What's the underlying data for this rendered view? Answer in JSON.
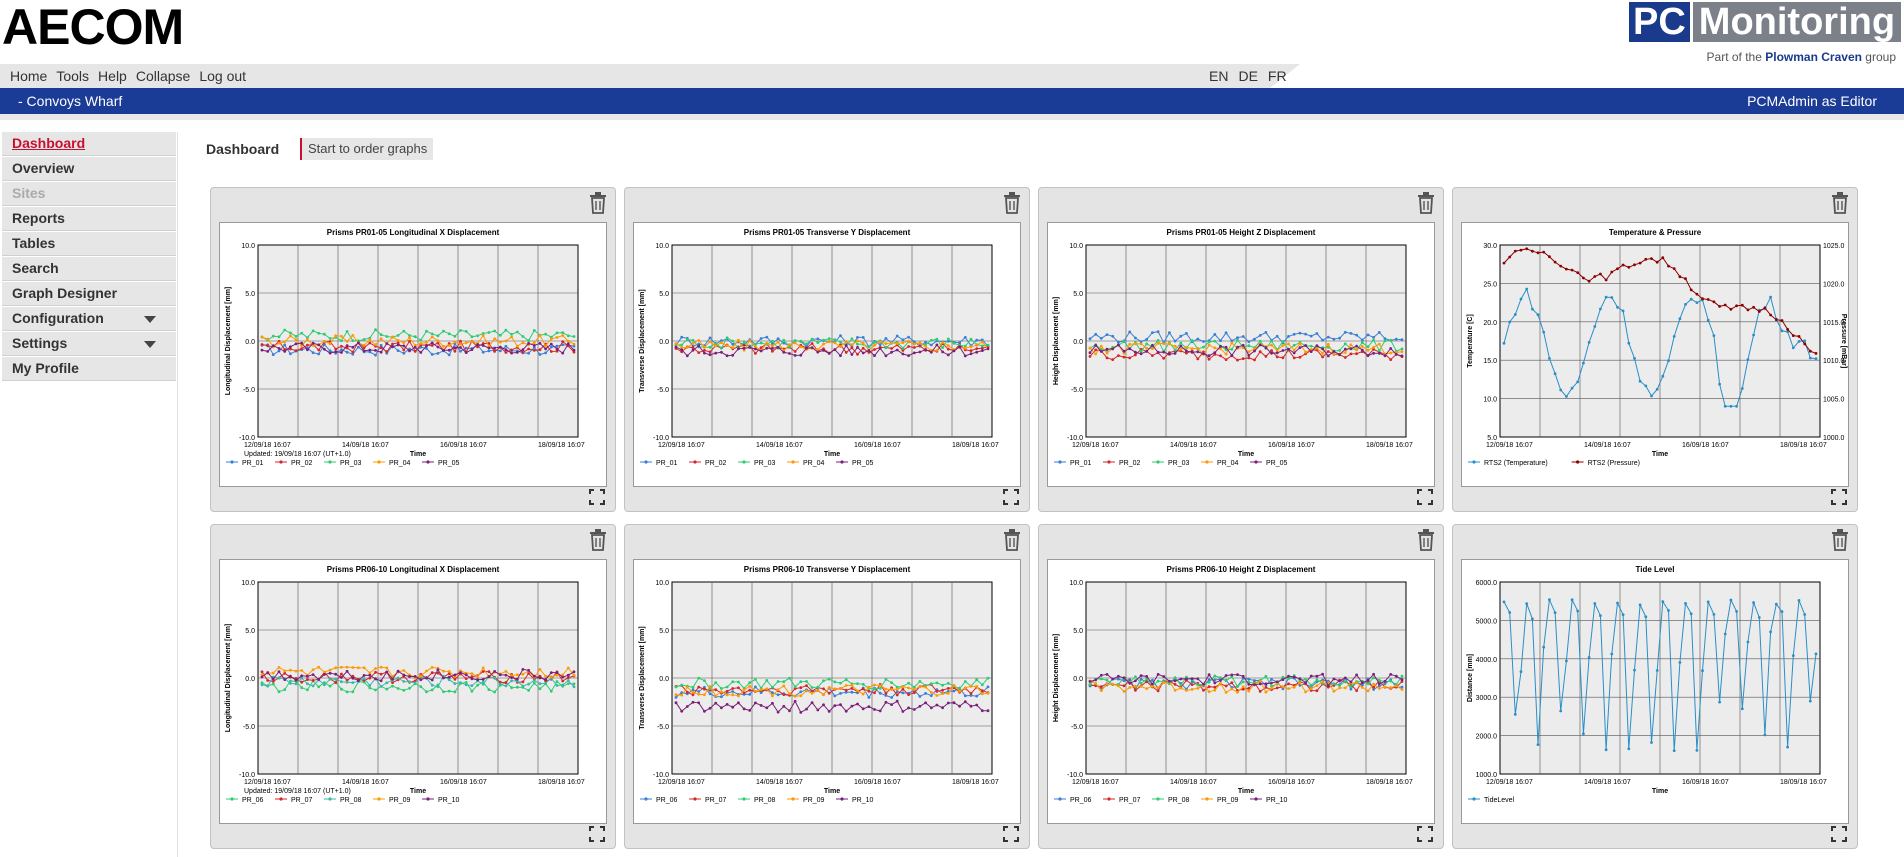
{
  "header": {
    "logo_text": "AECOM",
    "pcm_logo": {
      "pc": "PC",
      "monitoring": "Monitoring",
      "tagline_prefix": "Part of the",
      "tagline_brand": "Plowman Craven",
      "tagline_suffix": "group"
    }
  },
  "menu": [
    "Home",
    "Tools",
    "Help",
    "Collapse",
    "Log out"
  ],
  "languages": [
    "EN",
    "DE",
    "FR"
  ],
  "site_name": "- Convoys Wharf",
  "user_info": "PCMAdmin as Editor",
  "sidebar": [
    {
      "label": "Dashboard",
      "state": "active"
    },
    {
      "label": "Overview"
    },
    {
      "label": "Sites",
      "state": "disabled"
    },
    {
      "label": "Reports"
    },
    {
      "label": "Tables"
    },
    {
      "label": "Search"
    },
    {
      "label": "Graph Designer"
    },
    {
      "label": "Configuration",
      "caret": true
    },
    {
      "label": "Settings",
      "caret": true
    },
    {
      "label": "My Profile"
    }
  ],
  "main": {
    "title": "Dashboard",
    "order_button": "Start to order graphs"
  },
  "colors": {
    "brand_blue": "#1a3b96",
    "active_red": "#c8102e",
    "panel_bg": "#e4e4e4"
  },
  "chart_data": [
    {
      "type": "line",
      "title": "Prisms PR01-05 Longitudinal X Displacement",
      "ylabel": "Longitudinal Displacement [mm]",
      "ylim": [
        -10,
        10
      ],
      "yticks": [
        "10.0",
        "5.0",
        "0.0",
        "-5.0",
        "-10.0"
      ],
      "xticks": [
        "12/09/18 16:07",
        "14/09/18 16:07",
        "16/09/18 16:07",
        "18/09/18 16:07"
      ],
      "updated": "Updated: 19/09/18 16:07 (UT+1.0)",
      "xlabel": "Time",
      "series": [
        {
          "name": "PR_01",
          "color": "#3a7fd5",
          "base": -0.9
        },
        {
          "name": "PR_02",
          "color": "#d62728",
          "base": -0.6
        },
        {
          "name": "PR_03",
          "color": "#2ecc71",
          "base": 0.6
        },
        {
          "name": "PR_04",
          "color": "#ff9900",
          "base": 0.0
        },
        {
          "name": "PR_05",
          "color": "#7a1f7a",
          "base": -0.7
        }
      ]
    },
    {
      "type": "line",
      "title": "Prisms PR01-05 Transverse Y Displacement",
      "ylabel": "Transverse Displacement [mm]",
      "ylim": [
        -10,
        10
      ],
      "yticks": [
        "10.0",
        "5.0",
        "0.0",
        "-5.0",
        "-10.0"
      ],
      "xticks": [
        "12/09/18 16:07",
        "14/09/18 16:07",
        "16/09/18 16:07",
        "18/09/18 16:07"
      ],
      "updated": "",
      "xlabel": "Time",
      "series": [
        {
          "name": "PR_01",
          "color": "#3a7fd5",
          "base": 0.0
        },
        {
          "name": "PR_02",
          "color": "#d62728",
          "base": -0.8
        },
        {
          "name": "PR_03",
          "color": "#2ecc71",
          "base": -0.2
        },
        {
          "name": "PR_04",
          "color": "#ff9900",
          "base": -0.5
        },
        {
          "name": "PR_05",
          "color": "#7a1f7a",
          "base": -1.0
        }
      ]
    },
    {
      "type": "line",
      "title": "Prisms PR01-05 Height Z Displacement",
      "ylabel": "Height Displacement [mm]",
      "ylim": [
        -10,
        10
      ],
      "yticks": [
        "10.0",
        "5.0",
        "0.0",
        "-5.0",
        "-10.0"
      ],
      "xticks": [
        "12/09/18 16:07",
        "14/09/18 16:07",
        "16/09/18 16:07",
        "18/09/18 16:07"
      ],
      "updated": "",
      "xlabel": "Time",
      "series": [
        {
          "name": "PR_01",
          "color": "#3a7fd5",
          "base": 0.4
        },
        {
          "name": "PR_02",
          "color": "#d62728",
          "base": -1.4
        },
        {
          "name": "PR_03",
          "color": "#2ecc71",
          "base": -0.5
        },
        {
          "name": "PR_04",
          "color": "#ff9900",
          "base": -0.8
        },
        {
          "name": "PR_05",
          "color": "#7a1f7a",
          "base": -1.0
        }
      ]
    },
    {
      "type": "line",
      "title": "Temperature & Pressure",
      "ylabel": "Temperature [C]",
      "ylabel2": "Pressure [mBar]",
      "ylim": [
        5,
        30
      ],
      "ylim2": [
        1000,
        1025
      ],
      "yticks": [
        "30.0",
        "25.0",
        "20.0",
        "15.0",
        "10.0",
        "5.0"
      ],
      "yticks2": [
        "1025.0",
        "1020.0",
        "1015.0",
        "1010.0",
        "1005.0",
        "1000.0"
      ],
      "xticks": [
        "12/09/18 16:07",
        "14/09/18 16:07",
        "16/09/18 16:07",
        "18/09/18 16:07"
      ],
      "updated": "",
      "xlabel": "Time",
      "series": [
        {
          "name": "RTS2 (Temperature)",
          "color": "#2a8fc6"
        },
        {
          "name": "RTS2 (Pressure)",
          "color": "#8b0000"
        }
      ]
    },
    {
      "type": "line",
      "title": "Prisms PR06-10 Longitudinal X Displacement",
      "ylabel": "Longitudinal Displacement [mm]",
      "ylim": [
        -10,
        10
      ],
      "yticks": [
        "10.0",
        "5.0",
        "0.0",
        "-5.0",
        "-10.0"
      ],
      "xticks": [
        "12/09/18 16:07",
        "14/09/18 16:07",
        "16/09/18 16:07",
        "18/09/18 16:07"
      ],
      "updated": "Updated: 19/09/18 16:07 (UT+1.0)",
      "xlabel": "Time",
      "series": [
        {
          "name": "PR_06",
          "color": "#2ecc71",
          "base": -0.9
        },
        {
          "name": "PR_07",
          "color": "#d62728",
          "base": 0.1
        },
        {
          "name": "PR_08",
          "color": "#3ab8a8",
          "base": -0.4
        },
        {
          "name": "PR_09",
          "color": "#ff9900",
          "base": 0.6
        },
        {
          "name": "PR_10",
          "color": "#7a1f7a",
          "base": 0.3
        }
      ]
    },
    {
      "type": "line",
      "title": "Prisms PR06-10 Transverse Y Displacement",
      "ylabel": "Transverse Displacement [mm]",
      "ylim": [
        -10,
        10
      ],
      "yticks": [
        "10.0",
        "5.0",
        "0.0",
        "-5.0",
        "-10.0"
      ],
      "xticks": [
        "12/09/18 16:07",
        "14/09/18 16:07",
        "16/09/18 16:07",
        "18/09/18 16:07"
      ],
      "updated": "",
      "xlabel": "Time",
      "series": [
        {
          "name": "PR_06",
          "color": "#3a7fd5",
          "base": -1.5
        },
        {
          "name": "PR_07",
          "color": "#d62728",
          "base": -1.2
        },
        {
          "name": "PR_08",
          "color": "#2ecc71",
          "base": -0.6
        },
        {
          "name": "PR_09",
          "color": "#ff9900",
          "base": -1.3
        },
        {
          "name": "PR_10",
          "color": "#7a1f7a",
          "base": -3.0
        }
      ]
    },
    {
      "type": "line",
      "title": "Prisms PR06-10 Height Z Displacement",
      "ylabel": "Height Displacement [mm]",
      "ylim": [
        -10,
        10
      ],
      "yticks": [
        "10.0",
        "5.0",
        "0.0",
        "-5.0",
        "-10.0"
      ],
      "xticks": [
        "12/09/18 16:07",
        "14/09/18 16:07",
        "16/09/18 16:07",
        "18/09/18 16:07"
      ],
      "updated": "",
      "xlabel": "Time",
      "series": [
        {
          "name": "PR_06",
          "color": "#3a7fd5",
          "base": -0.6
        },
        {
          "name": "PR_07",
          "color": "#d62728",
          "base": -0.8
        },
        {
          "name": "PR_08",
          "color": "#2ecc71",
          "base": -0.3
        },
        {
          "name": "PR_09",
          "color": "#ff9900",
          "base": -0.9
        },
        {
          "name": "PR_10",
          "color": "#7a1f7a",
          "base": -0.2
        }
      ]
    },
    {
      "type": "line",
      "title": "Tide Level",
      "ylabel": "Distance [mm]",
      "ylim": [
        1000,
        6000
      ],
      "yticks": [
        "6000.0",
        "5000.0",
        "4000.0",
        "3000.0",
        "2000.0",
        "1000.0"
      ],
      "xticks": [
        "12/09/18 16:07",
        "14/09/18 16:07",
        "16/09/18 16:07",
        "18/09/18 16:07"
      ],
      "updated": "",
      "xlabel": "Time",
      "series": [
        {
          "name": "TideLevel",
          "color": "#2a8fc6"
        }
      ]
    }
  ]
}
